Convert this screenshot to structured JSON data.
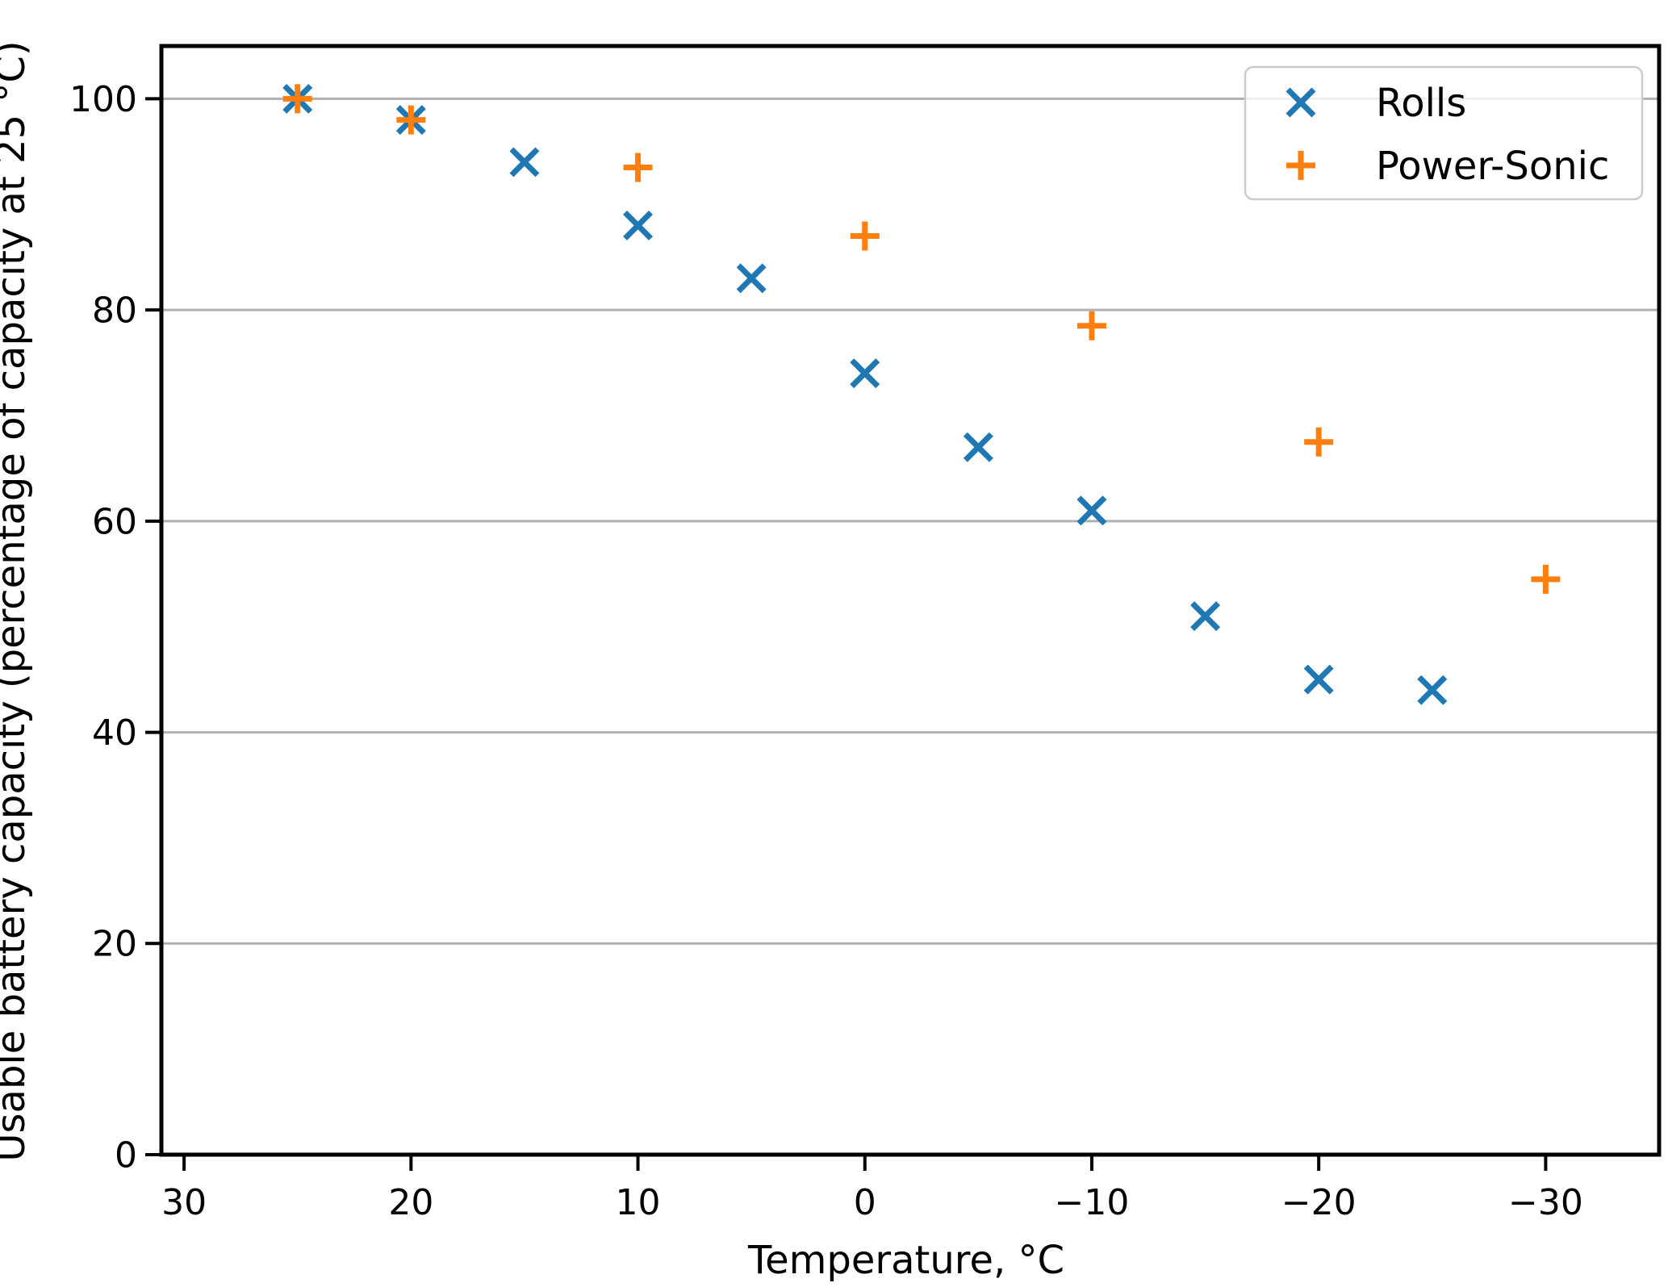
{
  "figure": {
    "background": "#ffffff"
  },
  "chart_data": {
    "type": "scatter",
    "title": "",
    "xlabel": "Temperature, °C",
    "ylabel": "Usable battery capacity (percentage of capacity at 25 °C)",
    "x_ticks": [
      30,
      20,
      10,
      0,
      -10,
      -20,
      -30
    ],
    "y_ticks": [
      0,
      20,
      40,
      60,
      80,
      100
    ],
    "xlim": [
      31,
      -35
    ],
    "ylim": [
      0,
      105
    ],
    "x_axis_inverted": true,
    "grid": "y",
    "grid_color": "#b0b0b0",
    "axis_color": "#000000",
    "legend_position": "upper-right",
    "legend_border_color": "#cccccc",
    "series": [
      {
        "name": "Rolls",
        "marker": "x",
        "color": "#1f77b4",
        "points": [
          [
            25,
            100
          ],
          [
            20,
            98
          ],
          [
            15,
            94
          ],
          [
            10,
            88
          ],
          [
            5,
            83
          ],
          [
            0,
            74
          ],
          [
            -5,
            67
          ],
          [
            -10,
            61
          ],
          [
            -15,
            51
          ],
          [
            -20,
            45
          ],
          [
            -25,
            44
          ]
        ]
      },
      {
        "name": "Power-Sonic",
        "marker": "+",
        "color": "#ff7f0e",
        "points": [
          [
            25,
            100
          ],
          [
            20,
            98
          ],
          [
            10,
            93.5
          ],
          [
            0,
            87
          ],
          [
            -10,
            78.5
          ],
          [
            -20,
            67.5
          ],
          [
            -30,
            54.5
          ]
        ]
      }
    ]
  }
}
